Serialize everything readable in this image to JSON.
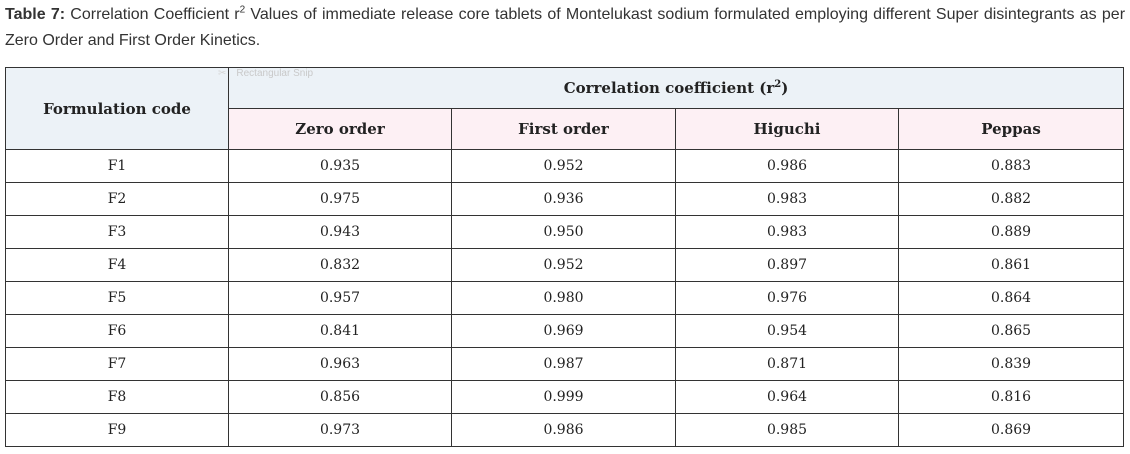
{
  "caption": {
    "label": "Table 7:",
    "text_before_sup": "Correlation Coefficient r",
    "sup": "2",
    "text_after_sup": " Values of immediate release core tablets of Montelukast sodium formulated employing different Super disintegrants as per Zero Order and First Order Kinetics."
  },
  "watermark": "Rectangular Snip",
  "table": {
    "header_formulation": "Formulation code",
    "header_group_base": "Correlation coefficient (r",
    "header_group_sup": "2",
    "header_group_close": ")",
    "columns": [
      "Zero order",
      "First order",
      "Higuchi",
      "Peppas"
    ],
    "rows": [
      {
        "code": "F1",
        "values": [
          "0.935",
          "0.952",
          "0.986",
          "0.883"
        ]
      },
      {
        "code": "F2",
        "values": [
          "0.975",
          "0.936",
          "0.983",
          "0.882"
        ]
      },
      {
        "code": "F3",
        "values": [
          "0.943",
          "0.950",
          "0.983",
          "0.889"
        ]
      },
      {
        "code": "F4",
        "values": [
          "0.832",
          "0.952",
          "0.897",
          "0.861"
        ]
      },
      {
        "code": "F5",
        "values": [
          "0.957",
          "0.980",
          "0.976",
          "0.864"
        ]
      },
      {
        "code": "F6",
        "values": [
          "0.841",
          "0.969",
          "0.954",
          "0.865"
        ]
      },
      {
        "code": "F7",
        "values": [
          "0.963",
          "0.987",
          "0.871",
          "0.839"
        ]
      },
      {
        "code": "F8",
        "values": [
          "0.856",
          "0.999",
          "0.964",
          "0.816"
        ]
      },
      {
        "code": "F9",
        "values": [
          "0.973",
          "0.986",
          "0.985",
          "0.869"
        ]
      }
    ]
  }
}
